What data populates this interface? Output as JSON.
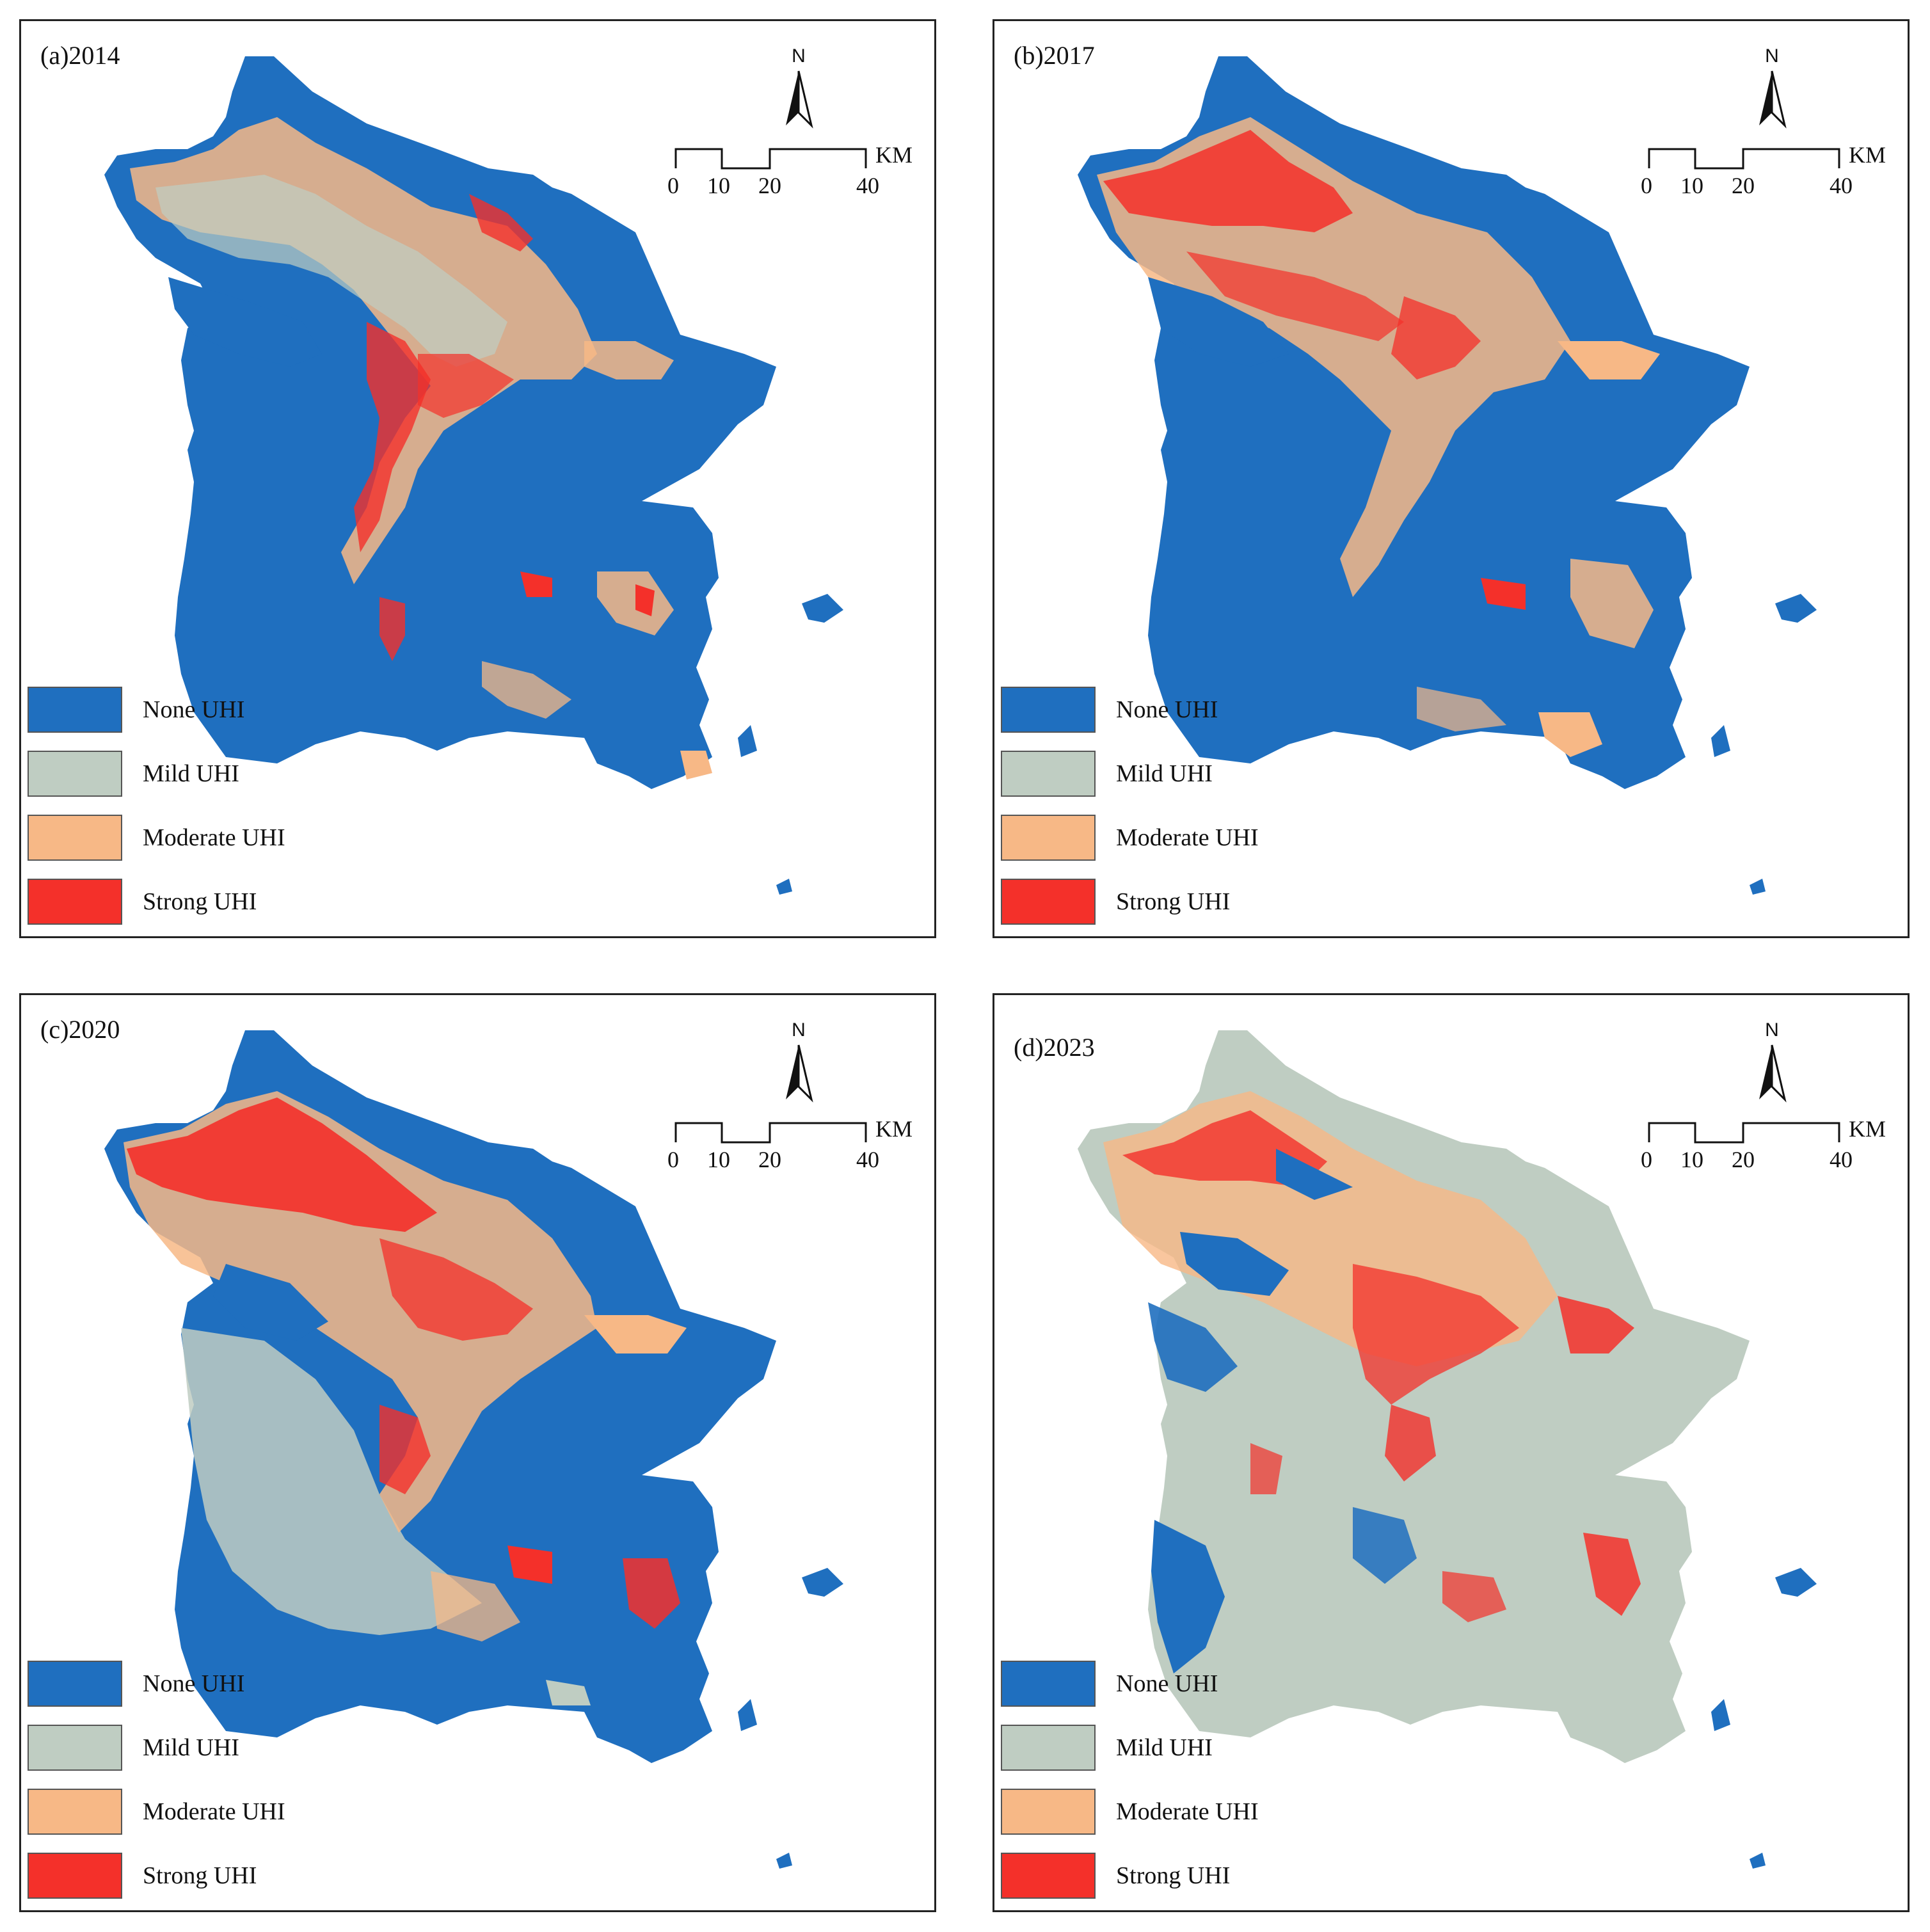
{
  "panels": [
    {
      "title": "(a)2014"
    },
    {
      "title": "(b)2017"
    },
    {
      "title": "(c)2020"
    },
    {
      "title": "(d)2023"
    }
  ],
  "north_label": "N",
  "scale": {
    "ticks": [
      "0",
      "10",
      "20",
      "40"
    ],
    "unit": "KM"
  },
  "legend": [
    {
      "label": "None UHI",
      "color": "#1f6fbf"
    },
    {
      "label": "Mild UHI",
      "color": "#bfcdc2"
    },
    {
      "label": "Moderate UHI",
      "color": "#f7b886"
    },
    {
      "label": "Strong UHI",
      "color": "#f4302a"
    }
  ]
}
